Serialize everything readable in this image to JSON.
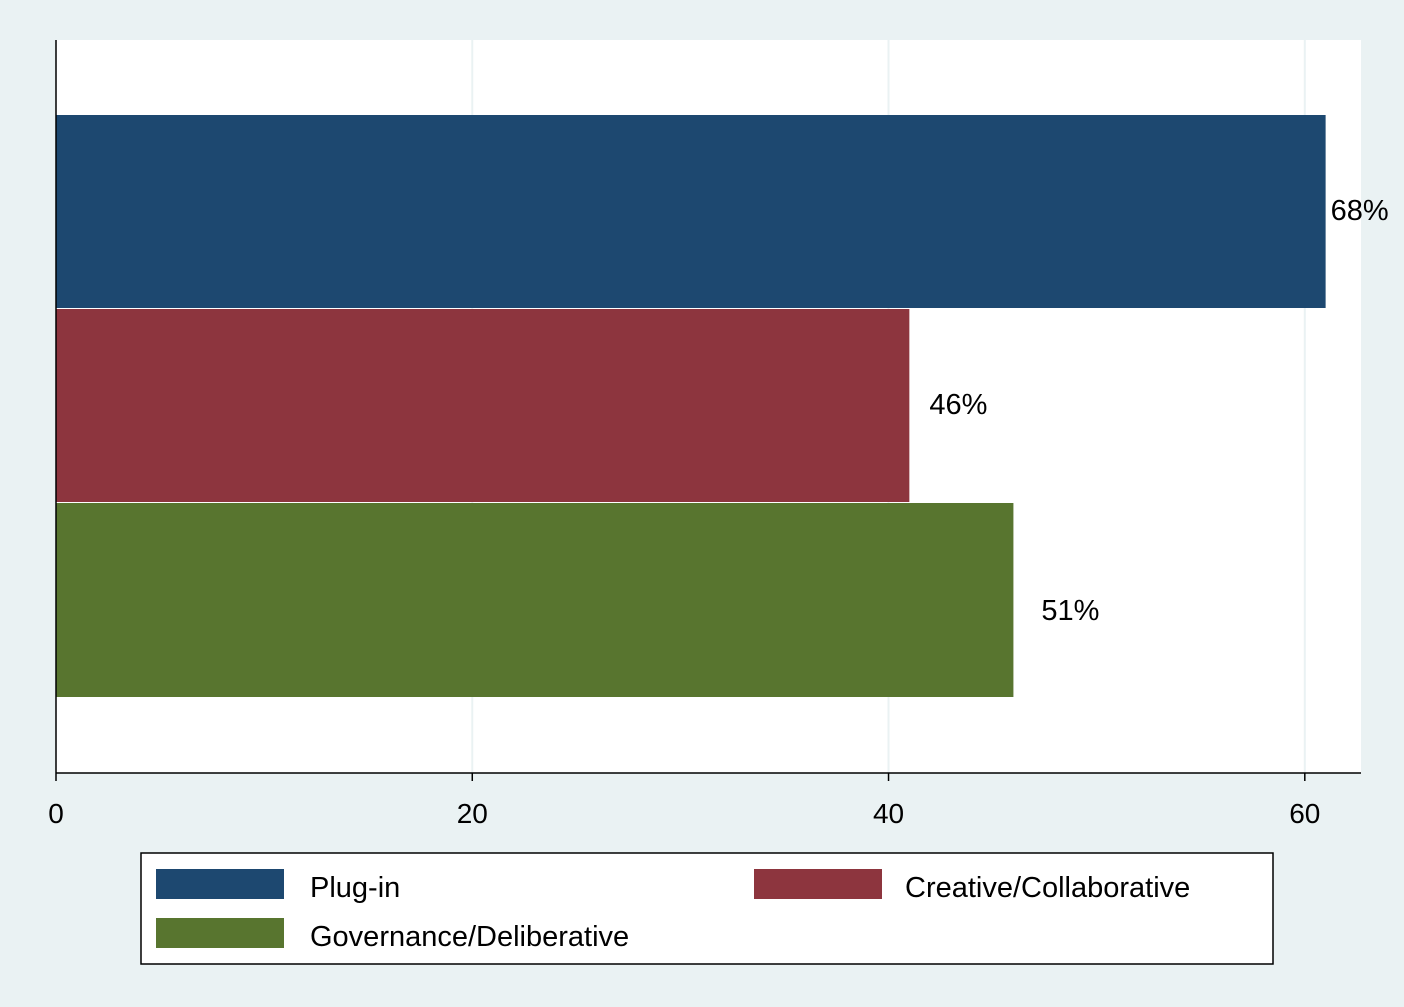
{
  "chart_data": {
    "type": "bar",
    "orientation": "horizontal",
    "xlim": [
      0,
      62.7
    ],
    "x_ticks": [
      0,
      20,
      40,
      60
    ],
    "x_tick_labels": [
      "0",
      "20",
      "40",
      "60"
    ],
    "grid": true,
    "xlabel": "",
    "ylabel": "",
    "series": [
      {
        "name": "Plug-in",
        "value": 61,
        "label": "68%",
        "color": "#1d4870"
      },
      {
        "name": "Creative/Collaborative",
        "value": 41,
        "label": "46%",
        "color": "#8d353e"
      },
      {
        "name": "Governance/Deliberative",
        "value": 46,
        "label": "51%",
        "color": "#58752f"
      }
    ],
    "legend_position": "bottom",
    "colors": {
      "page_background": "#eaf2f3",
      "plot_background": "#ffffff",
      "gridline": "#eaf2f3",
      "axis": "#000000"
    }
  }
}
